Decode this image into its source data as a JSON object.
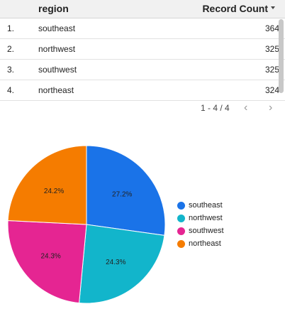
{
  "table": {
    "headers": {
      "region": "region",
      "count": "Record Count"
    },
    "rows": [
      {
        "idx": "1.",
        "region": "southeast",
        "count": "364"
      },
      {
        "idx": "2.",
        "region": "northwest",
        "count": "325"
      },
      {
        "idx": "3.",
        "region": "southwest",
        "count": "325"
      },
      {
        "idx": "4.",
        "region": "northeast",
        "count": "324"
      }
    ]
  },
  "pager": {
    "range": "1 - 4 / 4",
    "prev": "‹",
    "next": "›"
  },
  "chart_data": {
    "type": "pie",
    "categories": [
      "southeast",
      "northwest",
      "southwest",
      "northeast"
    ],
    "values": [
      364,
      325,
      325,
      324
    ],
    "labels": [
      "27.2%",
      "24.3%",
      "24.3%",
      "24.2%"
    ],
    "colors": [
      "#1a73e8",
      "#12b5cb",
      "#e52592",
      "#f57c00"
    ],
    "legend": "right"
  }
}
